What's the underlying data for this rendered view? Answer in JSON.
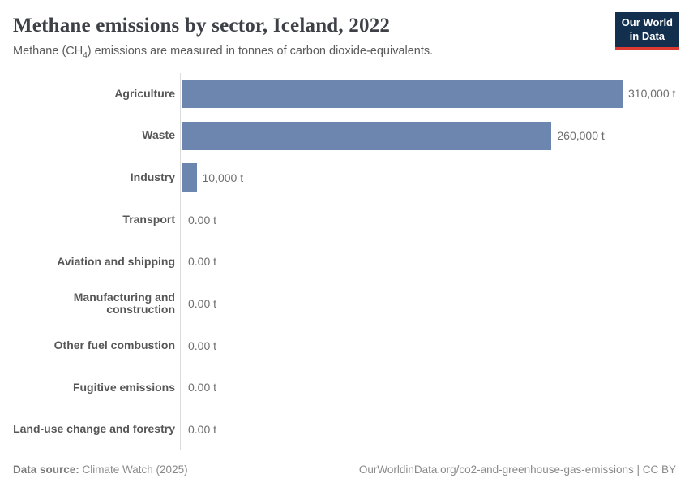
{
  "header": {
    "title": "Methane emissions by sector, Iceland, 2022",
    "subtitle": {
      "prefix": "Methane (CH",
      "subscript": "4",
      "suffix": ") emissions are measured in tonnes of carbon dioxide-equivalents."
    },
    "logo": {
      "line1": "Our World",
      "line2": "in Data"
    }
  },
  "chart_data": {
    "type": "bar",
    "orientation": "horizontal",
    "title": "Methane emissions by sector, Iceland, 2022",
    "unit": "tonnes of CO2-equivalents",
    "categories": [
      "Agriculture",
      "Waste",
      "Industry",
      "Transport",
      "Aviation and shipping",
      "Manufacturing and construction",
      "Other fuel combustion",
      "Fugitive emissions",
      "Land-use change and forestry"
    ],
    "values": [
      310000,
      260000,
      10000,
      0,
      0,
      0,
      0,
      0,
      0
    ],
    "value_labels": [
      "310,000 t",
      "260,000 t",
      "10,000 t",
      "0.00 t",
      "0.00 t",
      "0.00 t",
      "0.00 t",
      "0.00 t",
      "0.00 t"
    ],
    "xlim": [
      0,
      310000
    ],
    "grid": false,
    "legend": "none",
    "bar_color": "#6c86b0"
  },
  "footer": {
    "datasource_label": "Data source:",
    "datasource_value": " Climate Watch (2025)",
    "right_text": "OurWorldinData.org/co2-and-greenhouse-gas-emissions | CC BY"
  },
  "colors": {
    "bar": "#6c86b0",
    "logo_background": "#12304e",
    "logo_accent_red": "#dc3a31",
    "axis_line": "#dcdcdc",
    "title_text": "#3d4046",
    "label_text": "#565656",
    "value_text": "#6e6e6e",
    "footer_text": "#898989"
  }
}
